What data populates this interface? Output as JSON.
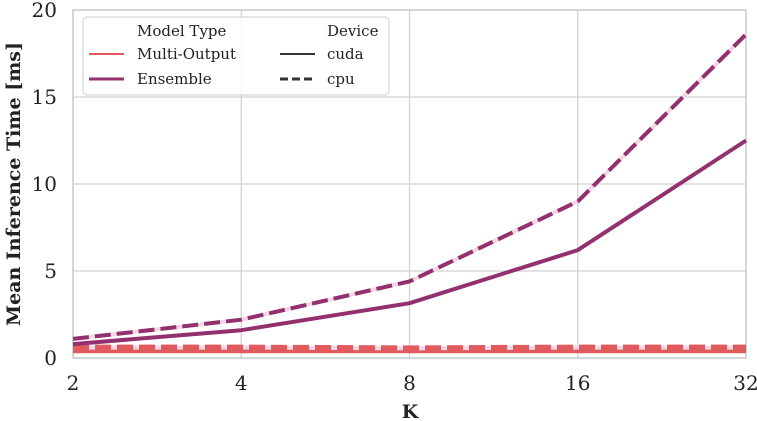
{
  "chart_data": {
    "type": "line",
    "title": "",
    "xlabel": "K",
    "ylabel": "Mean Inference Time [ms]",
    "x": [
      2,
      4,
      8,
      16,
      32
    ],
    "x_scale": "log2",
    "xticks": [
      "2",
      "4",
      "8",
      "16",
      "32"
    ],
    "yticks": [
      "0",
      "5",
      "10",
      "15",
      "20"
    ],
    "ylim": [
      0,
      20
    ],
    "grid": true,
    "legend_position": "upper left",
    "legend": {
      "model_type_title": "Model Type",
      "device_title": "Device",
      "model_types": [
        "Multi-Output",
        "Ensemble"
      ],
      "devices": [
        "cuda",
        "cpu"
      ]
    },
    "series": [
      {
        "name": "Multi-Output / cuda",
        "model": "Multi-Output",
        "device": "cuda",
        "color": "#e05a5e",
        "dash": "solid",
        "values": [
          0.45,
          0.45,
          0.45,
          0.45,
          0.45
        ]
      },
      {
        "name": "Multi-Output / cpu",
        "model": "Multi-Output",
        "device": "cpu",
        "color": "#e05a5e",
        "dash": "dashed",
        "values": [
          0.6,
          0.6,
          0.55,
          0.6,
          0.6
        ]
      },
      {
        "name": "Ensemble / cuda",
        "model": "Ensemble",
        "device": "cuda",
        "color": "#93306e",
        "dash": "solid",
        "values": [
          0.8,
          1.6,
          3.15,
          6.2,
          12.5
        ]
      },
      {
        "name": "Ensemble / cpu",
        "model": "Ensemble",
        "device": "cpu",
        "color": "#93306e",
        "dash": "dashed",
        "values": [
          1.1,
          2.2,
          4.4,
          9.0,
          18.6
        ]
      }
    ]
  }
}
